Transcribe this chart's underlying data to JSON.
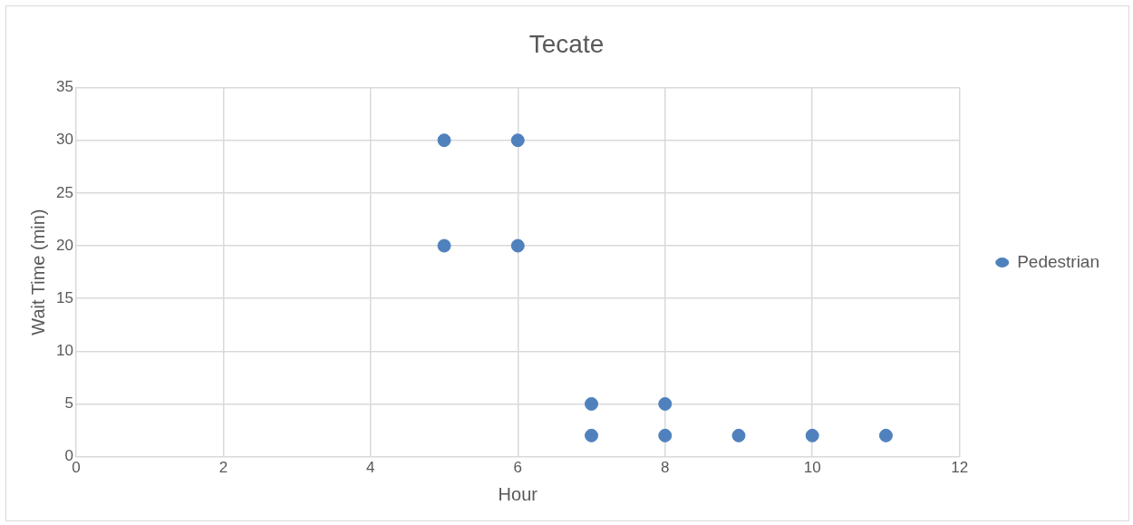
{
  "chart_data": {
    "type": "scatter",
    "title": "Tecate",
    "xlabel": "Hour",
    "ylabel": "Wait Time (min)",
    "series": [
      {
        "name": "Pedestrian",
        "color": "#4f81bd",
        "x": [
          5,
          5,
          6,
          6,
          7,
          7,
          8,
          8,
          9,
          10,
          11
        ],
        "values": [
          30,
          20,
          30,
          20,
          5,
          2,
          5,
          2,
          2,
          2,
          2
        ]
      }
    ],
    "xlim": [
      0,
      12
    ],
    "xticks": [
      0,
      2,
      4,
      6,
      8,
      10,
      12
    ],
    "ylim": [
      0,
      35
    ],
    "yticks": [
      0,
      5,
      10,
      15,
      20,
      25,
      30,
      35
    ],
    "grid": true,
    "legend": "right",
    "marker": "circle"
  }
}
